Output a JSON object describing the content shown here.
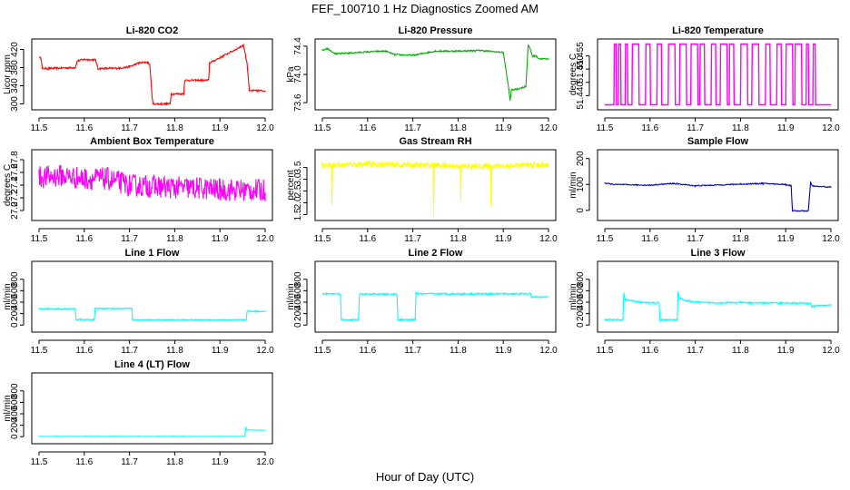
{
  "title": "FEF_100710  1 Hz Diagnostics Zoomed AM",
  "xlabel": "Hour of Day (UTC)",
  "chart_data": [
    {
      "type": "line",
      "title": "Li-820 CO2",
      "ylabel": "Licor ppm",
      "color": "#ff0000",
      "xlim": [
        11.5,
        12.0
      ],
      "ylim": [
        295,
        435
      ],
      "xticks": [
        11.5,
        11.6,
        11.7,
        11.8,
        11.9,
        12.0
      ],
      "xtick_labels": [
        "11.5",
        "11.6",
        "11.7",
        "11.8",
        "11.9",
        "12.0"
      ],
      "yticks": [
        300,
        340,
        380,
        420
      ],
      "ytick_labels": [
        "300",
        "340",
        "380",
        "420"
      ],
      "noise": 2,
      "x": [
        11.502,
        11.505,
        11.507,
        11.52,
        11.58,
        11.585,
        11.6,
        11.625,
        11.63,
        11.655,
        11.68,
        11.7,
        11.72,
        11.74,
        11.745,
        11.75,
        11.752,
        11.79,
        11.792,
        11.82,
        11.822,
        11.875,
        11.877,
        11.95,
        11.952,
        11.96,
        11.965,
        12.0
      ],
      "y": [
        402,
        398,
        378,
        378,
        380,
        395,
        398,
        397,
        378,
        378,
        379,
        382,
        390,
        392,
        386,
        316,
        300,
        300,
        322,
        322,
        352,
        352,
        390,
        428,
        429,
        390,
        329,
        329
      ]
    },
    {
      "type": "line",
      "title": "Li-820 Pressure",
      "ylabel": "kPa",
      "color": "#00b000",
      "xlim": [
        11.5,
        12.0
      ],
      "ylim": [
        73.55,
        74.45
      ],
      "xticks": [
        11.5,
        11.6,
        11.7,
        11.8,
        11.9,
        12.0
      ],
      "xtick_labels": [
        "11.5",
        "11.6",
        "11.7",
        "11.8",
        "11.9",
        "12.0"
      ],
      "yticks": [
        73.6,
        74.0,
        74.4
      ],
      "ytick_labels": [
        "73.6",
        "74.0",
        "74.4"
      ],
      "noise": 0.01,
      "x": [
        11.5,
        11.51,
        11.53,
        11.6,
        11.64,
        11.66,
        11.7,
        11.75,
        11.8,
        11.85,
        11.9,
        11.912,
        11.915,
        11.918,
        11.93,
        11.95,
        11.955,
        11.96,
        11.965,
        11.97,
        11.98,
        12.0
      ],
      "y": [
        74.34,
        74.37,
        74.29,
        74.32,
        74.33,
        74.28,
        74.27,
        74.33,
        74.33,
        74.34,
        74.31,
        73.8,
        73.63,
        73.78,
        73.79,
        73.83,
        74.42,
        74.35,
        74.25,
        74.27,
        74.22,
        74.22
      ]
    },
    {
      "type": "line",
      "title": "Li-820 Temperature",
      "ylabel": "degrees C",
      "color": "#ff00ff",
      "xlim": [
        11.5,
        12.0
      ],
      "ylim": [
        51.436,
        51.46
      ],
      "xticks": [
        11.5,
        11.6,
        11.7,
        11.8,
        11.9,
        12.0
      ],
      "xtick_labels": [
        "11.5",
        "11.6",
        "11.7",
        "11.8",
        "11.9",
        "12.0"
      ],
      "yticks": [
        51.44,
        51.445,
        51.45,
        51.455
      ],
      "ytick_labels": [
        "51.440",
        "",
        "51.450",
        "51.455"
      ],
      "levels": [
        51.4365,
        51.4595
      ],
      "noise": 0,
      "x": [
        11.5,
        11.52,
        11.521,
        11.525,
        11.526,
        11.53,
        11.531,
        11.535,
        11.536,
        11.545,
        11.546,
        11.55,
        11.551,
        11.56,
        11.561,
        11.575,
        11.576,
        11.59,
        11.591,
        11.6,
        11.601,
        11.615,
        11.616,
        11.625,
        11.626,
        11.64,
        11.641,
        11.655,
        11.656,
        11.665,
        11.666,
        11.68,
        11.681,
        11.69,
        11.691,
        11.705,
        11.706,
        11.71,
        11.711,
        11.72,
        11.721,
        11.735,
        11.736,
        11.745,
        11.746,
        11.755,
        11.756,
        11.77,
        11.771,
        11.775,
        11.776,
        11.785,
        11.786,
        11.8,
        11.801,
        11.815,
        11.816,
        11.825,
        11.826,
        11.84,
        11.841,
        11.855,
        11.856,
        11.865,
        11.866,
        11.88,
        11.881,
        11.89,
        11.891,
        11.9,
        11.901,
        11.915,
        11.916,
        11.92,
        11.921,
        11.935,
        11.936,
        11.945,
        11.946,
        11.95,
        11.951,
        11.96,
        11.961,
        11.965,
        11.966,
        12.0
      ],
      "y": [
        51.4365,
        51.4365,
        51.4595,
        51.4595,
        51.4365,
        51.4365,
        51.4595,
        51.4595,
        51.4365,
        51.4365,
        51.4595,
        51.4595,
        51.4365,
        51.4365,
        51.4595,
        51.4595,
        51.4365,
        51.4365,
        51.4595,
        51.4595,
        51.4365,
        51.4365,
        51.4595,
        51.4595,
        51.4365,
        51.4365,
        51.4595,
        51.4595,
        51.4365,
        51.4365,
        51.4595,
        51.4595,
        51.4365,
        51.4365,
        51.4595,
        51.4595,
        51.4365,
        51.4365,
        51.4595,
        51.4595,
        51.4365,
        51.4365,
        51.4595,
        51.4595,
        51.4365,
        51.4365,
        51.4595,
        51.4595,
        51.4365,
        51.4365,
        51.4595,
        51.4595,
        51.4365,
        51.4365,
        51.4595,
        51.4595,
        51.4365,
        51.4365,
        51.4595,
        51.4595,
        51.4365,
        51.4365,
        51.4595,
        51.4595,
        51.4365,
        51.4365,
        51.4595,
        51.4595,
        51.4365,
        51.4365,
        51.4595,
        51.4595,
        51.4365,
        51.4365,
        51.4595,
        51.4595,
        51.4365,
        51.4365,
        51.4595,
        51.4595,
        51.4365,
        51.4365,
        51.4595,
        51.4595,
        51.4365,
        51.4365
      ]
    },
    {
      "type": "line",
      "title": "Ambient Box Temperature",
      "ylabel": "degrees C",
      "color": "#ff00ff",
      "xlim": [
        11.5,
        12.0
      ],
      "ylim": [
        26.9,
        27.9
      ],
      "xticks": [
        11.5,
        11.6,
        11.7,
        11.8,
        11.9,
        12.0
      ],
      "xtick_labels": [
        "11.5",
        "11.6",
        "11.7",
        "11.8",
        "11.9",
        "12.0"
      ],
      "yticks": [
        27.0,
        27.2,
        27.4,
        27.6,
        27.8
      ],
      "ytick_labels": [
        "27.0",
        "27.2",
        "27.4",
        "27.6",
        "27.8"
      ],
      "noise": 0.18,
      "x": [
        11.5,
        11.55,
        11.6,
        11.65,
        11.7,
        11.75,
        11.8,
        11.85,
        11.9,
        11.95,
        12.0
      ],
      "y": [
        27.52,
        27.55,
        27.5,
        27.5,
        27.4,
        27.38,
        27.36,
        27.35,
        27.33,
        27.32,
        27.32
      ]
    },
    {
      "type": "line",
      "title": "Gas Stream RH",
      "ylabel": "percent",
      "color": "#ffff00",
      "xlim": [
        11.5,
        12.0
      ],
      "ylim": [
        1.4,
        4.1
      ],
      "xticks": [
        11.5,
        11.6,
        11.7,
        11.8,
        11.9,
        12.0
      ],
      "xtick_labels": [
        "11.5",
        "11.6",
        "11.7",
        "11.8",
        "11.9",
        "12.0"
      ],
      "yticks": [
        1.5,
        2.0,
        2.5,
        3.0,
        3.5
      ],
      "ytick_labels": [
        "1.5",
        "2.0",
        "2.5",
        "3.0",
        "3.5"
      ],
      "noise": 0.12,
      "x": [
        11.5,
        11.52,
        11.521,
        11.522,
        11.6,
        11.7,
        11.745,
        11.746,
        11.747,
        11.8,
        11.805,
        11.806,
        11.807,
        11.87,
        11.872,
        11.873,
        11.874,
        11.95,
        12.0
      ],
      "y": [
        3.6,
        3.6,
        1.8,
        3.6,
        3.65,
        3.6,
        3.6,
        1.5,
        3.6,
        3.55,
        3.55,
        2.1,
        3.55,
        3.55,
        3.55,
        1.75,
        3.55,
        3.6,
        3.6
      ]
    },
    {
      "type": "line",
      "title": "Sample Flow",
      "ylabel": "ml/min",
      "color": "#0000cc",
      "xlim": [
        11.5,
        12.0
      ],
      "ylim": [
        -25,
        220
      ],
      "xticks": [
        11.5,
        11.6,
        11.7,
        11.8,
        11.9,
        12.0
      ],
      "xtick_labels": [
        "11.5",
        "11.6",
        "11.7",
        "11.8",
        "11.9",
        "12.0"
      ],
      "yticks": [
        0,
        100,
        200
      ],
      "ytick_labels": [
        "0",
        "100",
        "200"
      ],
      "noise": 2,
      "x": [
        11.5,
        11.52,
        11.6,
        11.65,
        11.7,
        11.8,
        11.85,
        11.9,
        11.912,
        11.915,
        11.95,
        11.955,
        11.958,
        11.97,
        12.0
      ],
      "y": [
        105,
        100,
        97,
        104,
        95,
        101,
        104,
        100,
        95,
        -2,
        -2,
        110,
        95,
        92,
        90
      ]
    },
    {
      "type": "line",
      "title": "Line 1 Flow",
      "ylabel": "ml/min",
      "color": "#00ffff",
      "xlim": [
        11.5,
        12.0
      ],
      "ylim": [
        -60,
        1050
      ],
      "xticks": [
        11.5,
        11.6,
        11.7,
        11.8,
        11.9,
        12.0
      ],
      "xtick_labels": [
        "11.5",
        "11.6",
        "11.7",
        "11.8",
        "11.9",
        "12.0"
      ],
      "yticks": [
        0,
        200,
        400,
        600,
        800
      ],
      "ytick_labels": [
        "0",
        "200",
        "400",
        "600",
        "800"
      ],
      "noise": 10,
      "x": [
        11.5,
        11.58,
        11.582,
        11.622,
        11.624,
        11.705,
        11.707,
        11.958,
        11.96,
        12.0
      ],
      "y": [
        285,
        285,
        95,
        95,
        290,
        290,
        90,
        90,
        240,
        240
      ]
    },
    {
      "type": "line",
      "title": "Line 2 Flow",
      "ylabel": "ml/min",
      "color": "#00ffff",
      "xlim": [
        11.5,
        12.0
      ],
      "ylim": [
        -60,
        1050
      ],
      "xticks": [
        11.5,
        11.6,
        11.7,
        11.8,
        11.9,
        12.0
      ],
      "xtick_labels": [
        "11.5",
        "11.6",
        "11.7",
        "11.8",
        "11.9",
        "12.0"
      ],
      "yticks": [
        0,
        200,
        400,
        600,
        800
      ],
      "ytick_labels": [
        "0",
        "200",
        "400",
        "600",
        "800"
      ],
      "noise": 14,
      "x": [
        11.5,
        11.54,
        11.542,
        11.58,
        11.582,
        11.665,
        11.667,
        11.705,
        11.707,
        11.71,
        11.96,
        11.962,
        12.0
      ],
      "y": [
        545,
        545,
        90,
        90,
        540,
        540,
        90,
        90,
        570,
        545,
        545,
        490,
        490
      ]
    },
    {
      "type": "line",
      "title": "Line 3 Flow",
      "ylabel": "ml/min",
      "color": "#00ffff",
      "xlim": [
        11.5,
        12.0
      ],
      "ylim": [
        -60,
        1050
      ],
      "xticks": [
        11.5,
        11.6,
        11.7,
        11.8,
        11.9,
        12.0
      ],
      "xtick_labels": [
        "11.5",
        "11.6",
        "11.7",
        "11.8",
        "11.9",
        "12.0"
      ],
      "yticks": [
        0,
        200,
        400,
        600,
        800
      ],
      "ytick_labels": [
        "0",
        "200",
        "400",
        "600",
        "800"
      ],
      "noise": 14,
      "x": [
        11.5,
        11.54,
        11.542,
        11.545,
        11.56,
        11.58,
        11.582,
        11.62,
        11.622,
        11.66,
        11.662,
        11.665,
        11.68,
        11.72,
        11.8,
        11.9,
        11.955,
        11.957,
        12.0
      ],
      "y": [
        90,
        90,
        560,
        450,
        420,
        400,
        390,
        390,
        90,
        90,
        580,
        480,
        420,
        390,
        390,
        385,
        380,
        330,
        350
      ]
    },
    {
      "type": "line",
      "title": "Line 4 (LT) Flow",
      "ylabel": "ml/min",
      "color": "#00ffff",
      "xlim": [
        11.5,
        12.0
      ],
      "ylim": [
        -60,
        1050
      ],
      "xticks": [
        11.5,
        11.6,
        11.7,
        11.8,
        11.9,
        12.0
      ],
      "xtick_labels": [
        "11.5",
        "11.6",
        "11.7",
        "11.8",
        "11.9",
        "12.0"
      ],
      "yticks": [
        0,
        200,
        400,
        600,
        800
      ],
      "ytick_labels": [
        "0",
        "200",
        "400",
        "600",
        "800"
      ],
      "noise": 3,
      "x": [
        11.5,
        11.6,
        11.7,
        11.8,
        11.9,
        11.955,
        11.957,
        11.96,
        11.97,
        12.0
      ],
      "y": [
        5,
        5,
        5,
        5,
        5,
        5,
        160,
        120,
        115,
        115
      ]
    }
  ]
}
